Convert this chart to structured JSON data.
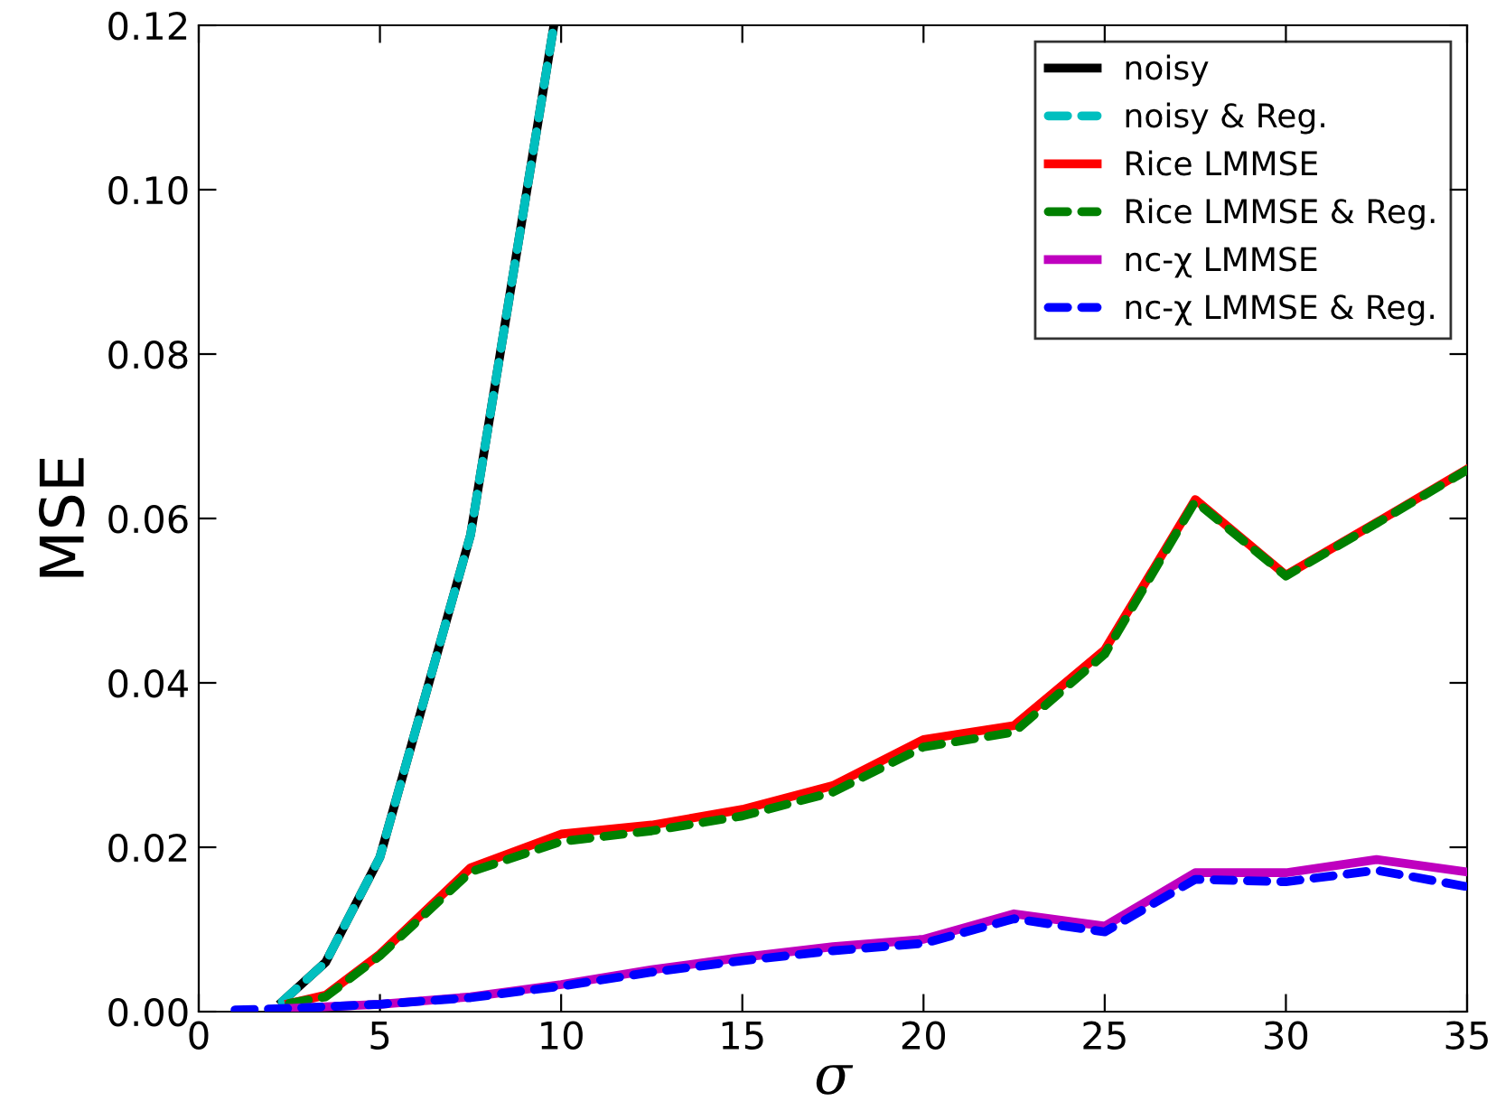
{
  "chart_data": {
    "type": "line",
    "xlabel": "σ",
    "ylabel": "MSE",
    "x": [
      1,
      2.5,
      3.5,
      5,
      7.5,
      10,
      12.5,
      15,
      17.5,
      20,
      22.5,
      25,
      27.5,
      30,
      32.5,
      35
    ],
    "xlim": [
      0,
      35
    ],
    "xticks": [
      0,
      5,
      10,
      15,
      20,
      25,
      30,
      35
    ],
    "ylim": [
      0,
      0.12
    ],
    "yticks": [
      {
        "value": 0,
        "label": "0.00"
      },
      {
        "value": 0.02,
        "label": "0.02"
      },
      {
        "value": 0.04,
        "label": "0.04"
      },
      {
        "value": 0.06,
        "label": "0.06"
      },
      {
        "value": 0.08,
        "label": "0.08"
      },
      {
        "value": 0.1,
        "label": "0.10"
      },
      {
        "value": 0.12,
        "label": "0.12"
      }
    ],
    "grid": false,
    "legend": "top right",
    "series": [
      {
        "name": "noisy",
        "color": "#000000",
        "line_style": "solid",
        "x": [
          2.3,
          3.5,
          5,
          7.5,
          9.8
        ],
        "values": [
          0.0012,
          0.006,
          0.0188,
          0.058,
          0.12
        ]
      },
      {
        "name": "noisy & Reg.",
        "color": "#00bfbf",
        "line_style": "dashed",
        "x": [
          2.3,
          3.5,
          5,
          7.5,
          9.8
        ],
        "values": [
          0.0012,
          0.006,
          0.0188,
          0.058,
          0.12
        ]
      },
      {
        "name": "Rice LMMSE",
        "color": "#ff0000",
        "line_style": "solid",
        "values": [
          null,
          0.001,
          0.002,
          0.007,
          0.0175,
          0.0216,
          0.0227,
          0.0246,
          0.0275,
          0.0331,
          0.0348,
          0.044,
          0.0623,
          0.0531,
          0.0595,
          0.066
        ]
      },
      {
        "name": "Rice LMMSE & Reg.",
        "color": "#008000",
        "line_style": "dashed",
        "values": [
          null,
          0.001,
          0.0018,
          0.0068,
          0.017,
          0.0207,
          0.022,
          0.0238,
          0.0267,
          0.0322,
          0.034,
          0.0435,
          0.0621,
          0.053,
          0.0594,
          0.0659
        ]
      },
      {
        "name": "nc-χ LMMSE",
        "color": "#bf00bf",
        "line_style": "solid",
        "values": [
          null,
          0.0004,
          0.0006,
          0.0009,
          0.0018,
          0.0033,
          0.0051,
          0.0066,
          0.0079,
          0.0088,
          0.0119,
          0.0104,
          0.0169,
          0.0169,
          0.0185,
          0.017
        ]
      },
      {
        "name": "nc-χ LMMSE & Reg.",
        "color": "#0000ff",
        "line_style": "dashed",
        "values": [
          0.0002,
          0.0004,
          0.0006,
          0.0009,
          0.0017,
          0.0031,
          0.0048,
          0.0062,
          0.0074,
          0.0083,
          0.0113,
          0.0097,
          0.0161,
          0.0158,
          0.0172,
          0.0152
        ]
      }
    ]
  }
}
